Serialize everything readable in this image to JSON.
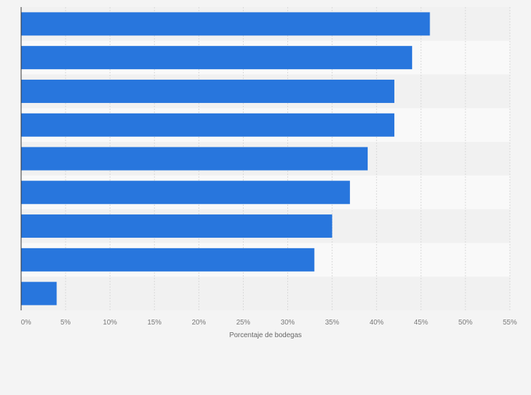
{
  "chart_data": {
    "type": "bar",
    "orientation": "horizontal",
    "categories": [
      "",
      "",
      "",
      "",
      "",
      "",
      "",
      "",
      ""
    ],
    "values": [
      46,
      44,
      42,
      42,
      39,
      37,
      35,
      33,
      4
    ],
    "xlabel": "Porcentaje de bodegas",
    "xlim": [
      0,
      55
    ],
    "ticks": [
      "0%",
      "5%",
      "10%",
      "15%",
      "20%",
      "25%",
      "30%",
      "35%",
      "40%",
      "45%",
      "50%",
      "55%"
    ],
    "tick_values": [
      0,
      5,
      10,
      15,
      20,
      25,
      30,
      35,
      40,
      45,
      50,
      55
    ],
    "grid": true,
    "bar_color": "#2876dd"
  }
}
